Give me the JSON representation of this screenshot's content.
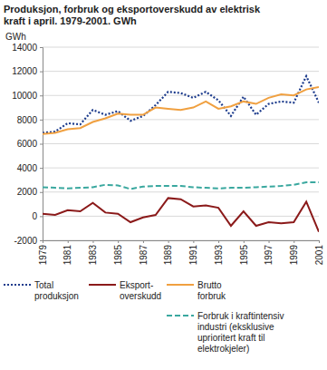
{
  "chart_data": {
    "type": "line",
    "title": "Produksjon, forbruk og eksportoverskudd av elektrisk\nkraft i april. 1979-2001. GWh",
    "y_label": "GWh",
    "x": [
      1979,
      1980,
      1981,
      1982,
      1983,
      1984,
      1985,
      1986,
      1987,
      1988,
      1989,
      1990,
      1991,
      1992,
      1993,
      1994,
      1995,
      1996,
      1997,
      1998,
      1999,
      2000,
      2001
    ],
    "xlim": [
      1979,
      2001
    ],
    "xticks": [
      1979,
      1981,
      1983,
      1985,
      1987,
      1989,
      1991,
      1993,
      1995,
      1997,
      1999,
      2001
    ],
    "ylim": [
      -2000,
      14000
    ],
    "yticks": [
      -2000,
      0,
      2000,
      4000,
      6000,
      8000,
      10000,
      12000,
      14000
    ],
    "grid": true,
    "series": [
      {
        "name": "Total\nproduksjon",
        "color": "#1c3b8c",
        "line_style": "dotted",
        "values": [
          6900,
          7000,
          7700,
          7600,
          8800,
          8400,
          8700,
          7900,
          8300,
          9200,
          10300,
          10200,
          9800,
          10300,
          9600,
          8300,
          9900,
          8400,
          9300,
          9500,
          9400,
          11600,
          9400
        ]
      },
      {
        "name": "Eksport-\noverskudd",
        "color": "#8b1a1a",
        "line_style": "solid",
        "values": [
          200,
          100,
          500,
          400,
          1100,
          300,
          200,
          -500,
          -100,
          100,
          1500,
          1400,
          800,
          900,
          700,
          -800,
          400,
          -800,
          -500,
          -600,
          -500,
          1200,
          -1300
        ]
      },
      {
        "name": "Brutto\nforbruk",
        "color": "#f0a040",
        "line_style": "solid",
        "values": [
          6800,
          6900,
          7200,
          7300,
          7800,
          8100,
          8500,
          8400,
          8400,
          9000,
          8900,
          8800,
          9000,
          9500,
          8900,
          9100,
          9500,
          9300,
          9800,
          10100,
          10000,
          10500,
          10700
        ]
      },
      {
        "name": "Forbruk i kraftintensiv\nindustri (eksklusive\nuprioritert kraft til\nelektrokjeler)",
        "color": "#3aa89f",
        "line_style": "dashed",
        "values": [
          2400,
          2350,
          2300,
          2350,
          2400,
          2600,
          2550,
          2250,
          2450,
          2500,
          2500,
          2500,
          2400,
          2350,
          2300,
          2350,
          2350,
          2400,
          2450,
          2500,
          2600,
          2800,
          2800
        ]
      }
    ]
  }
}
